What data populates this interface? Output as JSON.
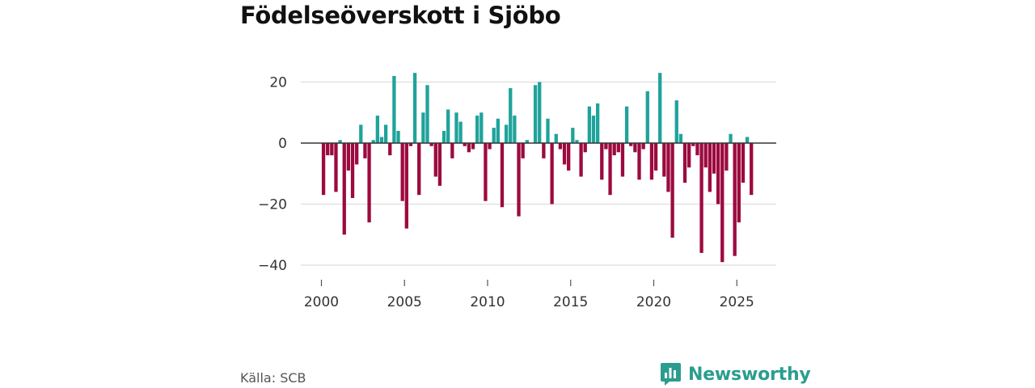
{
  "title": "Födelseöverskott i Sjöbo",
  "source": "Källa: SCB",
  "brand": {
    "name": "Newsworthy",
    "icon": "bar-chart-icon"
  },
  "colors": {
    "positive": "#1fa39b",
    "negative": "#9c0a3f",
    "brand": "#2a9d8f",
    "grid": "#dddddd",
    "zero_line": "#333333",
    "axis_text": "#333333"
  },
  "chart_data": {
    "type": "bar",
    "title": "Födelseöverskott i Sjöbo",
    "xlabel": "",
    "ylabel": "",
    "frequency": "quarterly",
    "start": "2000 Q1",
    "ylim": [
      -42,
      30
    ],
    "yticks": [
      20,
      0,
      -20,
      -40
    ],
    "ytick_labels": [
      "20",
      "0",
      "−20",
      "−40"
    ],
    "xticks": [
      2000,
      2005,
      2010,
      2015,
      2020,
      2025
    ],
    "xtick_labels": [
      "2000",
      "2005",
      "2010",
      "2015",
      "2020",
      "2025"
    ],
    "values": [
      -17,
      -4,
      -4,
      -16,
      1,
      -30,
      -9,
      -18,
      -7,
      6,
      -5,
      -26,
      1,
      9,
      2,
      6,
      -4,
      22,
      4,
      -19,
      -28,
      -1,
      23,
      -17,
      10,
      19,
      -1,
      -11,
      -14,
      4,
      11,
      -5,
      10,
      7,
      -1,
      -3,
      -2,
      9,
      10,
      -19,
      -2,
      5,
      8,
      -21,
      6,
      18,
      9,
      -24,
      -5,
      1,
      0,
      19,
      20,
      -5,
      8,
      -20,
      3,
      -2,
      -7,
      -9,
      5,
      1,
      -11,
      -3,
      12,
      9,
      13,
      -12,
      -2,
      -17,
      -4,
      -3,
      -11,
      12,
      -1,
      -3,
      -12,
      -2,
      17,
      -12,
      -9,
      23,
      -11,
      -16,
      -31,
      14,
      3,
      -13,
      -8,
      -1,
      -4,
      -36,
      -8,
      -16,
      -10,
      -20,
      -39,
      -9,
      3,
      -37,
      -26,
      -13,
      2,
      -17
    ]
  }
}
